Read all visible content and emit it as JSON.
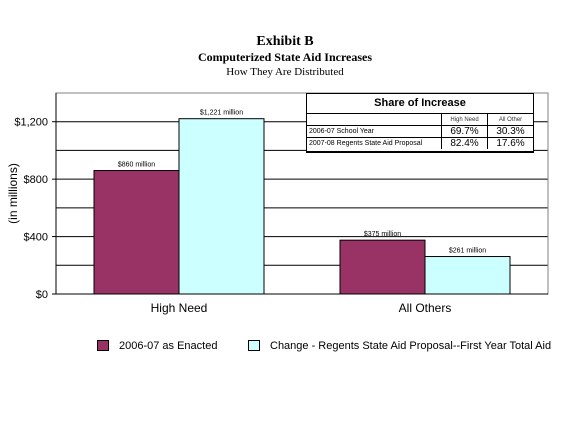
{
  "header": {
    "title": "Exhibit B",
    "subtitle": "Computerized State Aid Increases",
    "caption": "How They Are Distributed"
  },
  "share_table": {
    "title": "Share of Increase",
    "columns": [
      "High Need",
      "All Other"
    ],
    "rows": [
      {
        "label": "2006-07 School Year",
        "high_need": "69.7%",
        "all_other": "30.3%"
      },
      {
        "label": "2007-08 Regents State Aid Proposal",
        "high_need": "82.4%",
        "all_other": "17.6%"
      }
    ]
  },
  "legend": {
    "items": [
      {
        "label": "2006-07 as Enacted",
        "color": "#993366"
      },
      {
        "label": "Change - Regents State Aid Proposal--First Year Total Aid",
        "color": "#ccffff"
      }
    ]
  },
  "chart_data": {
    "type": "bar",
    "categories": [
      "High Need",
      "All Others"
    ],
    "series": [
      {
        "name": "2006-07 as Enacted",
        "values": [
          860,
          375
        ],
        "data_labels": [
          "$860 million",
          "$375 million"
        ],
        "color": "#993366"
      },
      {
        "name": "Change - Regents State Aid Proposal--First Year Total Aid",
        "values": [
          1221,
          261
        ],
        "data_labels": [
          "$1,221 million",
          "$261 million"
        ],
        "color": "#ccffff"
      }
    ],
    "ylabel": "(in millions)",
    "ylim": [
      0,
      1400
    ],
    "y_ticks": [
      0,
      400,
      800,
      1200
    ],
    "y_tick_labels": [
      "$0",
      "$400",
      "$800",
      "$1,200"
    ],
    "grid": true,
    "legend_position": "bottom"
  }
}
